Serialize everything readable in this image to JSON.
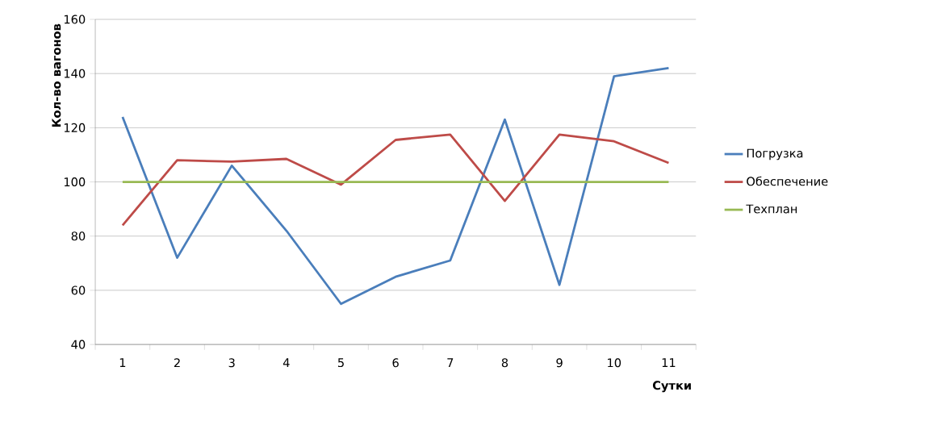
{
  "chart_data": {
    "type": "line",
    "xlabel": "Сутки",
    "ylabel": "Кол-во вагонов",
    "categories": [
      "1",
      "2",
      "3",
      "4",
      "5",
      "6",
      "7",
      "8",
      "9",
      "10",
      "11"
    ],
    "series": [
      {
        "name": "Погрузка",
        "color": "#4a7ebb",
        "values": [
          124,
          72,
          106,
          82,
          55,
          65,
          71,
          123,
          62,
          139,
          142
        ]
      },
      {
        "name": "Обеспечение",
        "color": "#be4b48",
        "values": [
          84,
          108,
          107.5,
          108.5,
          99,
          115.5,
          117.5,
          93,
          117.5,
          115,
          107
        ]
      },
      {
        "name": "Техплан",
        "color": "#98b954",
        "values": [
          100,
          100,
          100,
          100,
          100,
          100,
          100,
          100,
          100,
          100,
          100
        ]
      }
    ],
    "ylim": [
      40,
      160
    ],
    "yticks": [
      40,
      60,
      80,
      100,
      120,
      140,
      160
    ],
    "grid": "y",
    "legend": "right",
    "marker": "none",
    "line_style": "solid"
  }
}
